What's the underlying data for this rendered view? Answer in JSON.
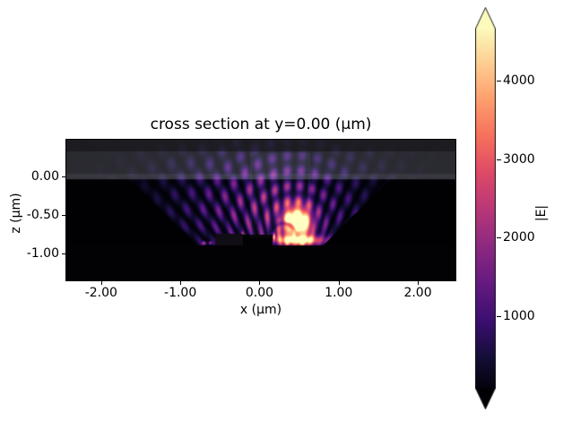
{
  "chart_data": {
    "type": "heatmap",
    "title": "cross section at y=0.00 (μm)",
    "xlabel": "x (μm)",
    "ylabel": "z (μm)",
    "x_range": [
      -2.44,
      2.475
    ],
    "z_range": [
      -1.35,
      0.477
    ],
    "x_ticks": [
      -2.0,
      -1.0,
      0.0,
      1.0,
      2.0
    ],
    "x_tick_labels": [
      "-2.00",
      "-1.00",
      "0.00",
      "1.00",
      "2.00"
    ],
    "z_ticks": [
      0.0,
      -0.5,
      -1.0
    ],
    "z_tick_labels": [
      "0.00",
      "-0.50",
      "-1.00"
    ],
    "grid": false,
    "aspect": "equal",
    "colormap": "magma",
    "colorbar": {
      "label": "|E|",
      "ticks": [
        1000,
        2000,
        3000,
        4000
      ],
      "tick_labels": [
        "1000",
        "2000",
        "3000",
        "4000"
      ],
      "vmin": 90,
      "vmax": 4660,
      "scale_max": 4700,
      "extend": "both"
    },
    "structure": {
      "surface_z": -0.04,
      "pml_z": 0.326,
      "interface_band": [
        -0.045,
        0.035
      ],
      "pit": {
        "left_top": [
          -1.65,
          -0.04
        ],
        "left_bot": [
          -0.77,
          -0.9
        ],
        "right_top": [
          1.65,
          -0.04
        ],
        "right_bot": [
          0.82,
          -0.88
        ],
        "floor_z": -0.895
      },
      "ridge": {
        "x0": -0.205,
        "x1": 0.17,
        "z_top": -0.755
      },
      "step": {
        "x0": -0.56,
        "x1": -0.205,
        "z_top": -0.74
      },
      "monitor_box": {
        "x0": -0.11,
        "x1": 0.63,
        "z0": -0.8,
        "z1": 0.3
      }
    },
    "field_features": {
      "hotspot": {
        "x": 0.47,
        "z": -0.6,
        "sx": 0.17,
        "sz": 0.2,
        "amp": 1.35
      },
      "floor_streak": {
        "x": 0.5,
        "z": -0.83,
        "sx": 0.3,
        "sz": 0.06,
        "amp": 0.9
      },
      "fan_virtual_center": [
        0.35,
        -2.0
      ],
      "fan_source": [
        0.45,
        -0.72
      ],
      "spoke_freq": 74,
      "radial_period": 0.2,
      "dark_arc": {
        "cx": 0.3,
        "cz": -0.78,
        "r": 0.17
      }
    }
  }
}
